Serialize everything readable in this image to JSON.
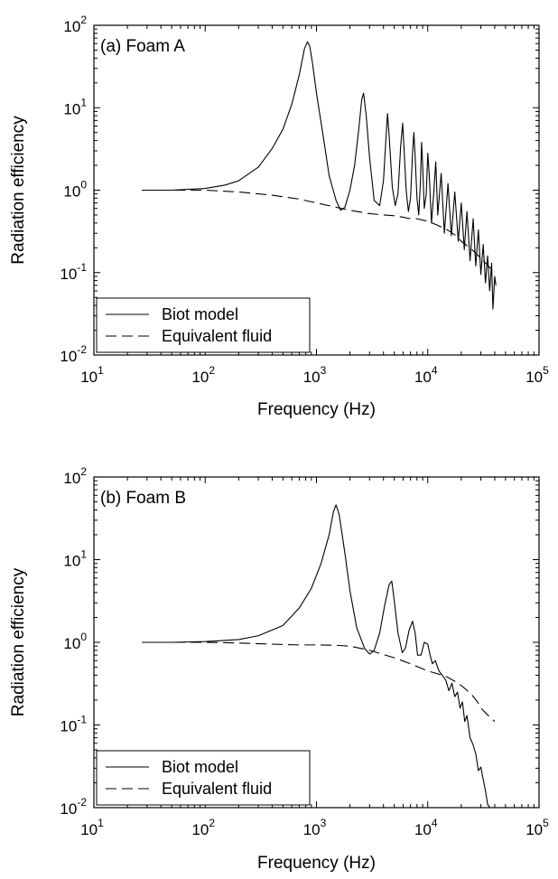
{
  "chart_data": [
    {
      "type": "line",
      "title": "(a) Foam A",
      "xlabel": "Frequency (Hz)",
      "ylabel": "Radiation efficiency",
      "x_scale": "log",
      "y_scale": "log",
      "xlim": [
        10,
        100000
      ],
      "ylim": [
        0.01,
        100
      ],
      "x_ticks": [
        {
          "base": "10",
          "exp": "1",
          "value": 10
        },
        {
          "base": "10",
          "exp": "2",
          "value": 100
        },
        {
          "base": "10",
          "exp": "3",
          "value": 1000
        },
        {
          "base": "10",
          "exp": "4",
          "value": 10000
        },
        {
          "base": "10",
          "exp": "5",
          "value": 100000
        }
      ],
      "y_ticks": [
        {
          "base": "10",
          "exp": "-2",
          "value": 0.01
        },
        {
          "base": "10",
          "exp": "-1",
          "value": 0.1
        },
        {
          "base": "10",
          "exp": "0",
          "value": 1
        },
        {
          "base": "10",
          "exp": "1",
          "value": 10
        },
        {
          "base": "10",
          "exp": "2",
          "value": 100
        }
      ],
      "legend_position": "bottom-left",
      "series": [
        {
          "name": "Biot model",
          "style": "solid",
          "x": [
            27,
            50,
            100,
            150,
            200,
            300,
            400,
            500,
            600,
            700,
            780,
            830,
            870,
            920,
            1000,
            1150,
            1300,
            1500,
            1650,
            1800,
            2000,
            2200,
            2400,
            2550,
            2650,
            2800,
            3000,
            3300,
            3700,
            4000,
            4200,
            4350,
            4500,
            4800,
            5100,
            5400,
            5700,
            5950,
            6100,
            6400,
            6700,
            7000,
            7300,
            7500,
            7700,
            8000,
            8300,
            8600,
            8800,
            9000,
            9300,
            9700,
            10000,
            10300,
            10800,
            11300,
            11800,
            12300,
            13200,
            14100,
            15200,
            16300,
            17500,
            18800,
            20000,
            21300,
            22500,
            24000,
            25600,
            27000,
            28500,
            30000,
            31500,
            33000,
            34500,
            36000,
            37500,
            38500,
            40000,
            41000
          ],
          "y": [
            1.0,
            1.0,
            1.05,
            1.15,
            1.3,
            1.9,
            3.2,
            5.5,
            11,
            25,
            52,
            63,
            56,
            35,
            15,
            4.5,
            1.5,
            0.75,
            0.57,
            0.62,
            1.0,
            2.0,
            5.5,
            12.5,
            15,
            8,
            2.5,
            0.75,
            0.65,
            1.3,
            4,
            8.5,
            4.5,
            1.1,
            0.65,
            0.9,
            3.3,
            6.5,
            3.5,
            1.0,
            0.55,
            0.8,
            2.8,
            5,
            2.6,
            0.8,
            0.5,
            1.3,
            3.8,
            2.0,
            0.6,
            0.9,
            2.8,
            1.6,
            0.4,
            0.9,
            2.2,
            0.5,
            1.6,
            0.3,
            1.2,
            0.28,
            0.95,
            0.24,
            0.7,
            0.19,
            0.55,
            0.14,
            0.45,
            0.12,
            0.33,
            0.095,
            0.22,
            0.075,
            0.16,
            0.06,
            0.13,
            0.036,
            0.09,
            0.07
          ]
        },
        {
          "name": "Equivalent fluid",
          "style": "dashed",
          "x": [
            27,
            100,
            200,
            400,
            700,
            1000,
            1500,
            2000,
            3000,
            4000,
            5000,
            6000,
            7000,
            8000,
            10000,
            12000,
            15000,
            18000,
            20000,
            25000,
            30000,
            35000,
            40000
          ],
          "y": [
            1.0,
            1.0,
            0.95,
            0.87,
            0.78,
            0.7,
            0.62,
            0.57,
            0.52,
            0.5,
            0.49,
            0.47,
            0.45,
            0.45,
            0.42,
            0.38,
            0.33,
            0.28,
            0.24,
            0.19,
            0.15,
            0.12,
            0.1
          ]
        }
      ]
    },
    {
      "type": "line",
      "title": "(b) Foam B",
      "xlabel": "Frequency (Hz)",
      "ylabel": "Radiation efficiency",
      "x_scale": "log",
      "y_scale": "log",
      "xlim": [
        10,
        100000
      ],
      "ylim": [
        0.01,
        100
      ],
      "x_ticks": [
        {
          "base": "10",
          "exp": "1",
          "value": 10
        },
        {
          "base": "10",
          "exp": "2",
          "value": 100
        },
        {
          "base": "10",
          "exp": "3",
          "value": 1000
        },
        {
          "base": "10",
          "exp": "4",
          "value": 10000
        },
        {
          "base": "10",
          "exp": "5",
          "value": 100000
        }
      ],
      "y_ticks": [
        {
          "base": "10",
          "exp": "-2",
          "value": 0.01
        },
        {
          "base": "10",
          "exp": "-1",
          "value": 0.1
        },
        {
          "base": "10",
          "exp": "0",
          "value": 1
        },
        {
          "base": "10",
          "exp": "1",
          "value": 10
        },
        {
          "base": "10",
          "exp": "2",
          "value": 100
        }
      ],
      "legend_position": "bottom-left",
      "series": [
        {
          "name": "Biot model",
          "style": "solid",
          "x": [
            27,
            50,
            100,
            200,
            300,
            500,
            700,
            900,
            1100,
            1300,
            1420,
            1500,
            1600,
            1800,
            2000,
            2300,
            2700,
            3000,
            3300,
            3700,
            4100,
            4500,
            4750,
            5000,
            5400,
            5900,
            6300,
            6800,
            7300,
            7700,
            8100,
            8700,
            9300,
            10000,
            10500,
            11000,
            11700,
            12600,
            13500,
            14500,
            15500,
            16500,
            17500,
            18500,
            19500,
            20500,
            21500,
            22500,
            24000,
            25500,
            27000,
            28500,
            30000,
            31500,
            33000,
            34500,
            36000
          ],
          "y": [
            1.0,
            1.0,
            1.02,
            1.08,
            1.2,
            1.6,
            2.6,
            4.5,
            9,
            20,
            38,
            46,
            35,
            12,
            4.2,
            1.5,
            0.85,
            0.72,
            0.8,
            1.3,
            2.8,
            5.0,
            5.5,
            3.2,
            1.3,
            0.75,
            0.85,
            1.4,
            1.8,
            1.3,
            0.7,
            0.7,
            1.0,
            0.95,
            0.7,
            0.55,
            0.6,
            0.45,
            0.4,
            0.35,
            0.26,
            0.32,
            0.22,
            0.25,
            0.16,
            0.19,
            0.11,
            0.13,
            0.07,
            0.058,
            0.045,
            0.028,
            0.031,
            0.022,
            0.016,
            0.011,
            0.0095
          ]
        },
        {
          "name": "Equivalent fluid",
          "style": "dashed",
          "x": [
            27,
            100,
            200,
            400,
            700,
            1000,
            1500,
            2000,
            3000,
            5000,
            7000,
            10000,
            12000,
            15000,
            18000,
            20000,
            22000,
            25000,
            28000,
            30000,
            35000,
            40000
          ],
          "y": [
            1.0,
            1.0,
            0.98,
            0.95,
            0.93,
            0.93,
            0.92,
            0.9,
            0.8,
            0.65,
            0.55,
            0.45,
            0.42,
            0.38,
            0.33,
            0.3,
            0.27,
            0.23,
            0.19,
            0.16,
            0.13,
            0.11
          ]
        }
      ]
    }
  ]
}
